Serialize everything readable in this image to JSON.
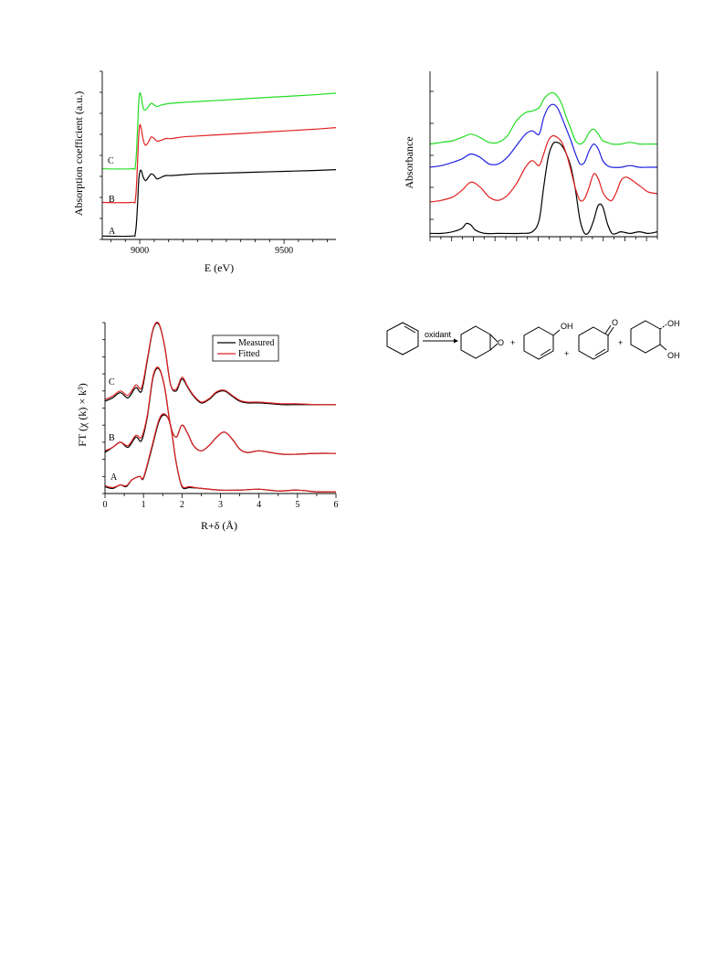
{
  "chart_data": [
    {
      "id": "xanes",
      "type": "line",
      "xlabel": "E (eV)",
      "ylabel": "Absorption coefficient (a.u.)",
      "xlim": [
        8870,
        9680
      ],
      "ylim": [
        0,
        1
      ],
      "x_ticks": [
        9000,
        9500
      ],
      "series": [
        {
          "name": "A",
          "label": "A",
          "color": "#000000",
          "x": [
            8870,
            8970,
            8985,
            8992,
            8996,
            9000,
            9005,
            9012,
            9020,
            9030,
            9040,
            9050,
            9060,
            9075,
            9090,
            9110,
            9150,
            9200,
            9300,
            9400,
            9500,
            9600,
            9680
          ],
          "y": [
            0.02,
            0.02,
            0.04,
            0.2,
            0.34,
            0.4,
            0.41,
            0.37,
            0.35,
            0.37,
            0.39,
            0.38,
            0.36,
            0.37,
            0.38,
            0.38,
            0.385,
            0.39,
            0.395,
            0.4,
            0.405,
            0.41,
            0.415
          ]
        },
        {
          "name": "B",
          "label": "B",
          "color": "#e02020",
          "x": [
            8870,
            8970,
            8985,
            8992,
            8996,
            9000,
            9005,
            9012,
            9020,
            9030,
            9040,
            9050,
            9060,
            9075,
            9090,
            9110,
            9150,
            9200,
            9300,
            9400,
            9500,
            9600,
            9680
          ],
          "y": [
            0.22,
            0.22,
            0.24,
            0.45,
            0.6,
            0.68,
            0.66,
            0.59,
            0.56,
            0.58,
            0.61,
            0.6,
            0.585,
            0.59,
            0.6,
            0.6,
            0.61,
            0.615,
            0.625,
            0.635,
            0.645,
            0.655,
            0.665
          ]
        },
        {
          "name": "C",
          "label": "C",
          "color": "#22dd22",
          "x": [
            8870,
            8970,
            8985,
            8992,
            8996,
            9000,
            9005,
            9012,
            9020,
            9030,
            9040,
            9050,
            9060,
            9075,
            9090,
            9110,
            9150,
            9200,
            9300,
            9400,
            9500,
            9600,
            9680
          ],
          "y": [
            0.42,
            0.42,
            0.44,
            0.65,
            0.8,
            0.87,
            0.85,
            0.78,
            0.77,
            0.79,
            0.81,
            0.8,
            0.79,
            0.8,
            0.805,
            0.81,
            0.815,
            0.82,
            0.83,
            0.84,
            0.85,
            0.86,
            0.87
          ]
        }
      ]
    },
    {
      "id": "ir",
      "type": "line",
      "xlabel": "",
      "ylabel": "Absorbance",
      "xlim": [
        0,
        100
      ],
      "ylim": [
        0,
        1
      ],
      "series": [
        {
          "name": "",
          "color": "#000000",
          "x": [
            0,
            5,
            10,
            14,
            16,
            18,
            20,
            24,
            30,
            40,
            45,
            48,
            50,
            52,
            54,
            56,
            58,
            60,
            62,
            64,
            66,
            68,
            70,
            72,
            74,
            76,
            78,
            80,
            82,
            84,
            88,
            92,
            96,
            100
          ],
          "y": [
            0.02,
            0.02,
            0.03,
            0.05,
            0.08,
            0.07,
            0.04,
            0.02,
            0.02,
            0.02,
            0.03,
            0.1,
            0.3,
            0.48,
            0.56,
            0.57,
            0.55,
            0.5,
            0.42,
            0.28,
            0.1,
            0.02,
            0.03,
            0.1,
            0.19,
            0.18,
            0.08,
            0.02,
            0.02,
            0.03,
            0.02,
            0.03,
            0.02,
            0.03
          ]
        },
        {
          "name": "",
          "color": "#e02020",
          "x": [
            0,
            5,
            10,
            14,
            18,
            22,
            26,
            30,
            34,
            38,
            42,
            45,
            48,
            50,
            52,
            54,
            56,
            58,
            60,
            62,
            64,
            66,
            68,
            70,
            72,
            74,
            76,
            78,
            80,
            82,
            84,
            86,
            88,
            90,
            93,
            96,
            100
          ],
          "y": [
            0.21,
            0.22,
            0.24,
            0.28,
            0.33,
            0.3,
            0.24,
            0.22,
            0.25,
            0.32,
            0.42,
            0.46,
            0.43,
            0.5,
            0.58,
            0.61,
            0.6,
            0.57,
            0.5,
            0.4,
            0.29,
            0.22,
            0.23,
            0.3,
            0.38,
            0.35,
            0.27,
            0.23,
            0.22,
            0.27,
            0.34,
            0.36,
            0.35,
            0.33,
            0.3,
            0.27,
            0.26
          ]
        },
        {
          "name": "",
          "color": "#2020e0",
          "x": [
            0,
            5,
            10,
            14,
            18,
            22,
            26,
            30,
            34,
            38,
            42,
            45,
            48,
            50,
            52,
            54,
            56,
            58,
            60,
            62,
            64,
            66,
            68,
            70,
            72,
            74,
            76,
            78,
            80,
            84,
            88,
            92,
            96,
            100
          ],
          "y": [
            0.42,
            0.43,
            0.45,
            0.47,
            0.5,
            0.48,
            0.44,
            0.44,
            0.48,
            0.55,
            0.62,
            0.64,
            0.62,
            0.72,
            0.78,
            0.8,
            0.78,
            0.72,
            0.65,
            0.58,
            0.5,
            0.44,
            0.45,
            0.52,
            0.56,
            0.53,
            0.46,
            0.43,
            0.42,
            0.42,
            0.43,
            0.42,
            0.42,
            0.42
          ]
        },
        {
          "name": "",
          "color": "#22dd22",
          "x": [
            0,
            5,
            10,
            14,
            18,
            22,
            26,
            30,
            34,
            38,
            42,
            45,
            48,
            50,
            52,
            54,
            56,
            58,
            60,
            62,
            64,
            66,
            68,
            70,
            72,
            74,
            76,
            78,
            80,
            84,
            88,
            92,
            96,
            100
          ],
          "y": [
            0.56,
            0.57,
            0.58,
            0.6,
            0.62,
            0.6,
            0.57,
            0.57,
            0.61,
            0.7,
            0.75,
            0.76,
            0.78,
            0.83,
            0.86,
            0.87,
            0.85,
            0.8,
            0.72,
            0.65,
            0.58,
            0.56,
            0.58,
            0.63,
            0.65,
            0.62,
            0.58,
            0.57,
            0.56,
            0.56,
            0.57,
            0.56,
            0.56,
            0.56
          ]
        }
      ]
    },
    {
      "id": "ft",
      "type": "line",
      "xlabel": "R+δ (Å)",
      "ylabel": "FT (χ (k) × k³)",
      "xlim": [
        0,
        6
      ],
      "ylim": [
        0,
        1
      ],
      "x_ticks": [
        0,
        1,
        2,
        3,
        4,
        5,
        6
      ],
      "legend": {
        "position": "top-right",
        "entries": [
          {
            "name": "Measured",
            "color": "#000000"
          },
          {
            "name": "Fitted",
            "color": "#e02020"
          }
        ]
      },
      "curve_labels": [
        "A",
        "B",
        "C"
      ],
      "series": [
        {
          "name": "A Measured",
          "color": "#000000",
          "x": [
            0,
            0.2,
            0.4,
            0.55,
            0.7,
            0.9,
            1.0,
            1.2,
            1.4,
            1.55,
            1.7,
            1.85,
            2.0,
            2.2,
            2.5,
            3.0,
            3.5,
            4.0,
            4.5,
            5.0,
            5.5,
            6.0
          ],
          "y": [
            0.04,
            0.03,
            0.05,
            0.04,
            0.08,
            0.1,
            0.09,
            0.25,
            0.42,
            0.46,
            0.4,
            0.18,
            0.04,
            0.035,
            0.03,
            0.02,
            0.02,
            0.025,
            0.015,
            0.02,
            0.01,
            0.01
          ]
        },
        {
          "name": "A Fitted",
          "color": "#e02020",
          "x": [
            0,
            0.2,
            0.4,
            0.55,
            0.7,
            0.9,
            1.0,
            1.2,
            1.4,
            1.55,
            1.7,
            1.85,
            2.0,
            2.2,
            2.5,
            3.0,
            3.5,
            4.0,
            4.5,
            5.0,
            5.5,
            6.0
          ],
          "y": [
            0.045,
            0.035,
            0.05,
            0.045,
            0.08,
            0.1,
            0.095,
            0.26,
            0.43,
            0.465,
            0.4,
            0.18,
            0.045,
            0.04,
            0.03,
            0.02,
            0.02,
            0.025,
            0.015,
            0.02,
            0.01,
            0.01
          ]
        },
        {
          "name": "B Measured",
          "color": "#000000",
          "x": [
            0,
            0.2,
            0.4,
            0.6,
            0.8,
            0.95,
            1.1,
            1.25,
            1.4,
            1.55,
            1.7,
            1.85,
            2.0,
            2.15,
            2.3,
            2.5,
            2.7,
            2.9,
            3.1,
            3.3,
            3.5,
            3.7,
            4.0,
            4.3,
            4.6,
            5.0,
            5.5,
            6.0
          ],
          "y": [
            0.24,
            0.27,
            0.3,
            0.27,
            0.33,
            0.31,
            0.45,
            0.68,
            0.73,
            0.62,
            0.4,
            0.33,
            0.4,
            0.35,
            0.28,
            0.25,
            0.28,
            0.33,
            0.36,
            0.32,
            0.26,
            0.24,
            0.25,
            0.24,
            0.23,
            0.23,
            0.235,
            0.235
          ]
        },
        {
          "name": "B Fitted",
          "color": "#e02020",
          "x": [
            0,
            0.2,
            0.4,
            0.6,
            0.8,
            0.95,
            1.1,
            1.25,
            1.4,
            1.55,
            1.7,
            1.85,
            2.0,
            2.15,
            2.3,
            2.5,
            2.7,
            2.9,
            3.1,
            3.3,
            3.5,
            3.7,
            4.0,
            4.3,
            4.6,
            5.0,
            5.5,
            6.0
          ],
          "y": [
            0.25,
            0.27,
            0.3,
            0.28,
            0.34,
            0.33,
            0.46,
            0.69,
            0.735,
            0.62,
            0.4,
            0.33,
            0.4,
            0.35,
            0.28,
            0.25,
            0.28,
            0.33,
            0.36,
            0.32,
            0.26,
            0.24,
            0.25,
            0.24,
            0.23,
            0.23,
            0.235,
            0.235
          ]
        },
        {
          "name": "C Measured",
          "color": "#000000",
          "x": [
            0,
            0.2,
            0.4,
            0.6,
            0.8,
            0.95,
            1.1,
            1.25,
            1.4,
            1.55,
            1.7,
            1.85,
            2.0,
            2.15,
            2.3,
            2.5,
            2.7,
            2.9,
            3.1,
            3.3,
            3.5,
            3.7,
            4.0,
            4.3,
            4.6,
            5.0,
            5.5,
            6.0
          ],
          "y": [
            0.54,
            0.56,
            0.59,
            0.56,
            0.62,
            0.6,
            0.78,
            0.96,
            0.99,
            0.86,
            0.64,
            0.6,
            0.67,
            0.62,
            0.57,
            0.53,
            0.55,
            0.59,
            0.6,
            0.57,
            0.54,
            0.53,
            0.53,
            0.525,
            0.52,
            0.52,
            0.52,
            0.52
          ]
        },
        {
          "name": "C Fitted",
          "color": "#e02020",
          "x": [
            0,
            0.2,
            0.4,
            0.6,
            0.8,
            0.95,
            1.1,
            1.25,
            1.4,
            1.55,
            1.7,
            1.85,
            2.0,
            2.15,
            2.3,
            2.5,
            2.7,
            2.9,
            3.1,
            3.3,
            3.5,
            3.7,
            4.0,
            4.3,
            4.6,
            5.0,
            5.5,
            6.0
          ],
          "y": [
            0.55,
            0.57,
            0.6,
            0.575,
            0.635,
            0.62,
            0.79,
            0.965,
            0.995,
            0.86,
            0.64,
            0.61,
            0.68,
            0.625,
            0.575,
            0.535,
            0.555,
            0.595,
            0.605,
            0.575,
            0.545,
            0.535,
            0.535,
            0.53,
            0.525,
            0.525,
            0.52,
            0.52
          ]
        }
      ]
    }
  ],
  "scheme": {
    "arrow_label": "oxidant",
    "plus": "+",
    "oh_label": "OH",
    "o_label": "O"
  }
}
